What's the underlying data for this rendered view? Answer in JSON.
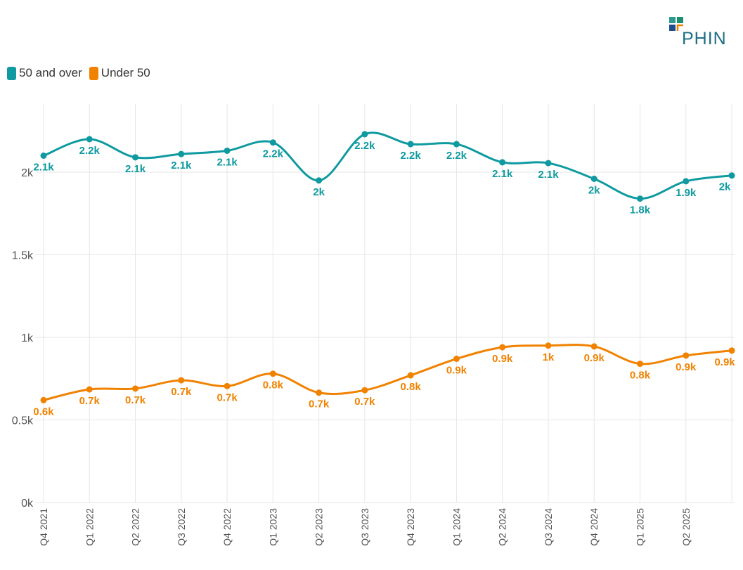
{
  "logo": {
    "text": "PHIN"
  },
  "colors": {
    "series_0": "#0e9aa0",
    "series_1": "#f08200",
    "grid": "#e6e6e6",
    "axis_text": "#555555"
  },
  "chart_data": {
    "type": "line",
    "smooth": true,
    "categories": [
      "Q4 2021",
      "Q1 2022",
      "Q2 2022",
      "Q3 2022",
      "Q4 2022",
      "Q1 2023",
      "Q2 2023",
      "Q3 2023",
      "Q4 2023",
      "Q1 2024",
      "Q2 2024",
      "Q3 2024",
      "Q4 2024",
      "Q1 2025",
      "Q2 2025",
      ""
    ],
    "series": [
      {
        "name": "50 and over",
        "values": [
          2100,
          2200,
          2090,
          2110,
          2130,
          2180,
          1950,
          2230,
          2170,
          2170,
          2060,
          2055,
          1960,
          1840,
          1945,
          1980
        ],
        "labels": [
          "2.1k",
          "2.2k",
          "2.1k",
          "2.1k",
          "2.1k",
          "2.2k",
          "2k",
          "2.2k",
          "2.2k",
          "2.2k",
          "2.1k",
          "2.1k",
          "2k",
          "1.8k",
          "1.9k",
          "2k"
        ]
      },
      {
        "name": "Under 50",
        "values": [
          620,
          685,
          690,
          740,
          705,
          780,
          665,
          680,
          770,
          870,
          940,
          950,
          945,
          840,
          890,
          920
        ],
        "labels": [
          "0.6k",
          "0.7k",
          "0.7k",
          "0.7k",
          "0.7k",
          "0.8k",
          "0.7k",
          "0.7k",
          "0.8k",
          "0.9k",
          "0.9k",
          "1k",
          "0.9k",
          "0.8k",
          "0.9k",
          "0.9k"
        ]
      }
    ],
    "yticks": [
      0,
      500,
      1000,
      1500,
      2000
    ],
    "ytick_labels": [
      "0k",
      "0.5k",
      "1k",
      "1.5k",
      "2k"
    ],
    "ylim": [
      0,
      2350
    ],
    "grid": true,
    "legend": "top-left"
  }
}
